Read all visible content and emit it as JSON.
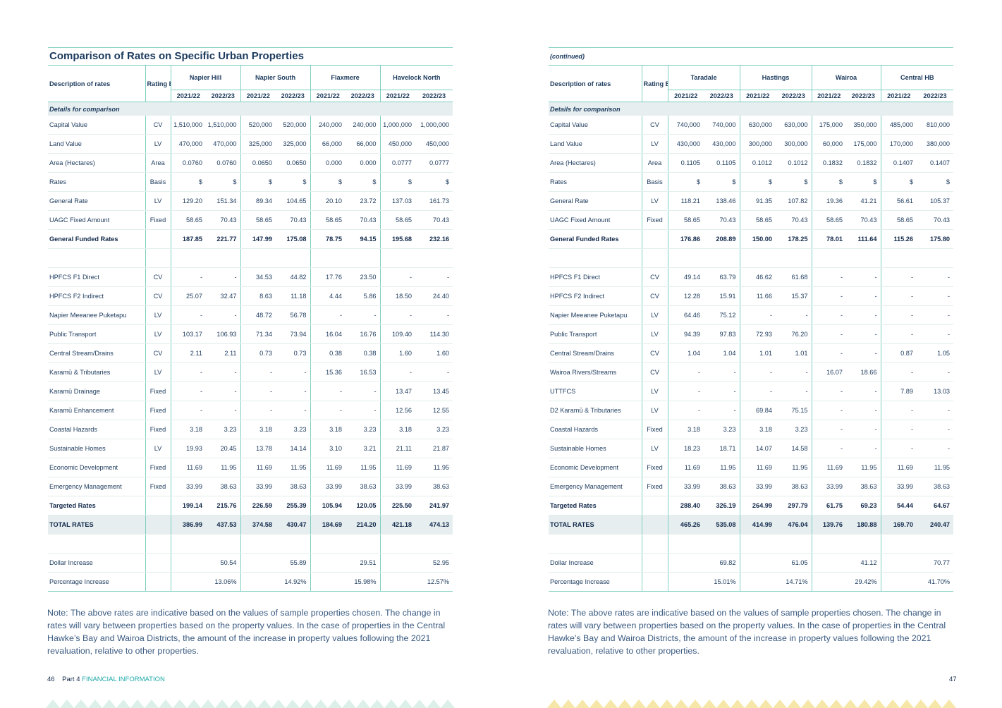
{
  "left": {
    "title": "Comparison of Rates on Specific Urban Properties",
    "header": {
      "description": "Description of rates",
      "rating_basis": "Rating Basis",
      "groups": [
        "Napier Hill",
        "Napier South",
        "Flaxmere",
        "Havelock North"
      ],
      "years": [
        "2021/22",
        "2022/23"
      ]
    },
    "section": "Details for comparison",
    "rows": [
      {
        "desc": "Capital Value",
        "basis": "CV",
        "v": [
          "1,510,000",
          "1,510,000",
          "520,000",
          "520,000",
          "240,000",
          "240,000",
          "1,000,000",
          "1,000,000"
        ]
      },
      {
        "desc": "Land Value",
        "basis": "LV",
        "v": [
          "470,000",
          "470,000",
          "325,000",
          "325,000",
          "66,000",
          "66,000",
          "450,000",
          "450,000"
        ]
      },
      {
        "desc": "Area (Hectares)",
        "basis": "Area",
        "v": [
          "0.0760",
          "0.0760",
          "0.0650",
          "0.0650",
          "0.000",
          "0.000",
          "0.0777",
          "0.0777"
        ]
      },
      {
        "desc": "Rates",
        "basis": "Basis",
        "v": [
          "$",
          "$",
          "$",
          "$",
          "$",
          "$",
          "$",
          "$"
        ],
        "top": true
      },
      {
        "desc": "General Rate",
        "basis": "LV",
        "v": [
          "129.20",
          "151.34",
          "89.34",
          "104.65",
          "20.10",
          "23.72",
          "137.03",
          "161.73"
        ]
      },
      {
        "desc": "UAGC Fixed Amount",
        "basis": "Fixed",
        "v": [
          "58.65",
          "70.43",
          "58.65",
          "70.43",
          "58.65",
          "70.43",
          "58.65",
          "70.43"
        ]
      },
      {
        "desc": "General Funded Rates",
        "basis": "",
        "v": [
          "187.85",
          "221.77",
          "147.99",
          "175.08",
          "78.75",
          "94.15",
          "195.68",
          "232.16"
        ],
        "bold": true,
        "top": true
      },
      {
        "desc": "",
        "basis": "",
        "v": [
          "",
          "",
          "",
          "",
          "",
          "",
          "",
          ""
        ]
      },
      {
        "desc": "HPFCS F1 Direct",
        "basis": "CV",
        "v": [
          "-",
          "-",
          "34.53",
          "44.82",
          "17.76",
          "23.50",
          "-",
          "-"
        ]
      },
      {
        "desc": "HPFCS F2 Indirect",
        "basis": "CV",
        "v": [
          "25.07",
          "32.47",
          "8.63",
          "11.18",
          "4.44",
          "5.86",
          "18.50",
          "24.40"
        ]
      },
      {
        "desc": "Napier Meeanee Puketapu",
        "basis": "LV",
        "v": [
          "-",
          "-",
          "48.72",
          "56.78",
          "-",
          "-",
          "-",
          "-"
        ]
      },
      {
        "desc": "Public Transport",
        "basis": "LV",
        "v": [
          "103.17",
          "106.93",
          "71.34",
          "73.94",
          "16.04",
          "16.76",
          "109.40",
          "114.30"
        ]
      },
      {
        "desc": "Central Stream/Drains",
        "basis": "CV",
        "v": [
          "2.11",
          "2.11",
          "0.73",
          "0.73",
          "0.38",
          "0.38",
          "1.60",
          "1.60"
        ]
      },
      {
        "desc": "Karamū & Tributaries",
        "basis": "LV",
        "v": [
          "-",
          "-",
          "-",
          "-",
          "15.36",
          "16.53",
          "-",
          "-"
        ]
      },
      {
        "desc": "Karamū Drainage",
        "basis": "Fixed",
        "v": [
          "-",
          "-",
          "-",
          "-",
          "-",
          "-",
          "13.47",
          "13.45"
        ]
      },
      {
        "desc": "Karamū Enhancement",
        "basis": "Fixed",
        "v": [
          "-",
          "-",
          "-",
          "-",
          "-",
          "-",
          "12.56",
          "12.55"
        ]
      },
      {
        "desc": "Coastal Hazards",
        "basis": "Fixed",
        "v": [
          "3.18",
          "3.23",
          "3.18",
          "3.23",
          "3.18",
          "3.23",
          "3.18",
          "3.23"
        ]
      },
      {
        "desc": "Sustainable Homes",
        "basis": "LV",
        "v": [
          "19.93",
          "20.45",
          "13.78",
          "14.14",
          "3.10",
          "3.21",
          "21.11",
          "21.87"
        ]
      },
      {
        "desc": "Economic Development",
        "basis": "Fixed",
        "v": [
          "11.69",
          "11.95",
          "11.69",
          "11.95",
          "11.69",
          "11.95",
          "11.69",
          "11.95"
        ]
      },
      {
        "desc": "Emergency Management",
        "basis": "Fixed",
        "v": [
          "33.99",
          "38.63",
          "33.99",
          "38.63",
          "33.99",
          "38.63",
          "33.99",
          "38.63"
        ]
      },
      {
        "desc": "Targeted Rates",
        "basis": "",
        "v": [
          "199.14",
          "215.76",
          "226.59",
          "255.39",
          "105.94",
          "120.05",
          "225.50",
          "241.97"
        ],
        "bold": true,
        "top": true
      },
      {
        "desc": "TOTAL RATES",
        "basis": "",
        "v": [
          "386.99",
          "437.53",
          "374.58",
          "430.47",
          "184.69",
          "214.20",
          "421.18",
          "474.13"
        ],
        "total": true
      },
      {
        "desc": "",
        "basis": "",
        "v": [
          "",
          "",
          "",
          "",
          "",
          "",
          "",
          ""
        ]
      },
      {
        "desc": "Dollar Increase",
        "basis": "",
        "v": [
          "",
          "50.54",
          "",
          "55.89",
          "",
          "29.51",
          "",
          "52.95"
        ]
      },
      {
        "desc": "Percentage Increase",
        "basis": "",
        "v": [
          "",
          "13.06%",
          "",
          "14.92%",
          "",
          "15.98%",
          "",
          "12.57%"
        ],
        "last": true
      }
    ],
    "note": "Note: The above rates are indicative based on the values of sample properties chosen. The change in rates will vary between properties based on the property values. In the case of properties in the Central Hawke’s Bay and Wairoa Districts, the amount of the increase in property values following the 2021 revaluation, relative to other properties.",
    "footer": {
      "page": "46",
      "part": "Part 4",
      "section": "FINANCIAL INFORMATION"
    },
    "zigzag_color": "#dcefe9"
  },
  "right": {
    "title": "(continued)",
    "header": {
      "description": "Description of rates",
      "rating_basis": "Rating Basis",
      "groups": [
        "Taradale",
        "Hastings",
        "Wairoa",
        "Central HB"
      ],
      "years": [
        "2021/22",
        "2022/23"
      ]
    },
    "section": "Details for comparison",
    "rows": [
      {
        "desc": "Capital Value",
        "basis": "CV",
        "v": [
          "740,000",
          "740,000",
          "630,000",
          "630,000",
          "175,000",
          "350,000",
          "485,000",
          "810,000"
        ]
      },
      {
        "desc": "Land Value",
        "basis": "LV",
        "v": [
          "430,000",
          "430,000",
          "300,000",
          "300,000",
          "60,000",
          "175,000",
          "170,000",
          "380,000"
        ]
      },
      {
        "desc": "Area (Hectares)",
        "basis": "Area",
        "v": [
          "0.1105",
          "0.1105",
          "0.1012",
          "0.1012",
          "0.1832",
          "0.1832",
          "0.1407",
          "0.1407"
        ]
      },
      {
        "desc": "Rates",
        "basis": "Basis",
        "v": [
          "$",
          "$",
          "$",
          "$",
          "$",
          "$",
          "$",
          "$"
        ]
      },
      {
        "desc": "General Rate",
        "basis": "LV",
        "v": [
          "118.21",
          "138.46",
          "91.35",
          "107.82",
          "19.36",
          "41.21",
          "56.61",
          "105.37"
        ]
      },
      {
        "desc": "UAGC Fixed Amount",
        "basis": "Fixed",
        "v": [
          "58.65",
          "70.43",
          "58.65",
          "70.43",
          "58.65",
          "70.43",
          "58.65",
          "70.43"
        ]
      },
      {
        "desc": "General Funded Rates",
        "basis": "",
        "v": [
          "176.86",
          "208.89",
          "150.00",
          "178.25",
          "78.01",
          "111.64",
          "115.26",
          "175.80"
        ],
        "bold": true,
        "top": true
      },
      {
        "desc": "",
        "basis": "",
        "v": [
          "",
          "",
          "",
          "",
          "",
          "",
          "",
          ""
        ]
      },
      {
        "desc": "HPFCS F1 Direct",
        "basis": "CV",
        "v": [
          "49.14",
          "63.79",
          "46.62",
          "61.68",
          "-",
          "-",
          "-",
          "-"
        ]
      },
      {
        "desc": "HPFCS F2 Indirect",
        "basis": "CV",
        "v": [
          "12.28",
          "15.91",
          "11.66",
          "15.37",
          "-",
          "-",
          "-",
          "-"
        ]
      },
      {
        "desc": "Napier Meeanee Puketapu",
        "basis": "LV",
        "v": [
          "64.46",
          "75.12",
          "-",
          "-",
          "-",
          "-",
          "-",
          "-"
        ]
      },
      {
        "desc": "Public Transport",
        "basis": "LV",
        "v": [
          "94.39",
          "97.83",
          "72.93",
          "76.20",
          "-",
          "-",
          "-",
          "-"
        ]
      },
      {
        "desc": "Central Stream/Drains",
        "basis": "CV",
        "v": [
          "1.04",
          "1.04",
          "1.01",
          "1.01",
          "-",
          "-",
          "0.87",
          "1.05"
        ]
      },
      {
        "desc": "Wairoa Rivers/Streams",
        "basis": "CV",
        "v": [
          "-",
          "-",
          "-",
          "-",
          "16.07",
          "18.66",
          "-",
          "-"
        ]
      },
      {
        "desc": "UTTFCS",
        "basis": "LV",
        "v": [
          "-",
          "-",
          "-",
          "-",
          "-",
          "-",
          "7.89",
          "13.03"
        ]
      },
      {
        "desc": "D2 Karamū & Tributaries",
        "basis": "LV",
        "v": [
          "-",
          "-",
          "69.84",
          "75.15",
          "-",
          "-",
          "-",
          "-"
        ]
      },
      {
        "desc": "Coastal Hazards",
        "basis": "Fixed",
        "v": [
          "3.18",
          "3.23",
          "3.18",
          "3.23",
          "-",
          "-",
          "-",
          "-"
        ]
      },
      {
        "desc": "Sustainable Homes",
        "basis": "LV",
        "v": [
          "18.23",
          "18.71",
          "14.07",
          "14.58",
          "-",
          "-",
          "-",
          "-"
        ]
      },
      {
        "desc": "Economic Development",
        "basis": "Fixed",
        "v": [
          "11.69",
          "11.95",
          "11.69",
          "11.95",
          "11.69",
          "11.95",
          "11.69",
          "11.95"
        ]
      },
      {
        "desc": "Emergency Management",
        "basis": "Fixed",
        "v": [
          "33.99",
          "38.63",
          "33.99",
          "38.63",
          "33.99",
          "38.63",
          "33.99",
          "38.63"
        ]
      },
      {
        "desc": "Targeted Rates",
        "basis": "",
        "v": [
          "288.40",
          "326.19",
          "264.99",
          "297.79",
          "61.75",
          "69.23",
          "54.44",
          "64.67"
        ],
        "bold": true,
        "top": true
      },
      {
        "desc": "TOTAL RATES",
        "basis": "",
        "v": [
          "465.26",
          "535.08",
          "414.99",
          "476.04",
          "139.76",
          "180.88",
          "169.70",
          "240.47"
        ],
        "total": true
      },
      {
        "desc": "",
        "basis": "",
        "v": [
          "",
          "",
          "",
          "",
          "",
          "",
          "",
          ""
        ]
      },
      {
        "desc": "Dollar Increase",
        "basis": "",
        "v": [
          "",
          "69.82",
          "",
          "61.05",
          "",
          "41.12",
          "",
          "70.77"
        ]
      },
      {
        "desc": "Percentage Increase",
        "basis": "",
        "v": [
          "",
          "15.01%",
          "",
          "14.71%",
          "",
          "29.42%",
          "",
          "41.70%"
        ],
        "last": true
      }
    ],
    "note": "Note: The above rates are indicative based on the values of sample properties chosen. The change in rates will vary between properties based on the property values. In the case of properties in the Central Hawke’s Bay and Wairoa Districts, the amount of the increase in property values following the 2021 revaluation, relative to other properties.",
    "footer": {
      "page": "47"
    },
    "zigzag_color": "#f6e7a8"
  }
}
